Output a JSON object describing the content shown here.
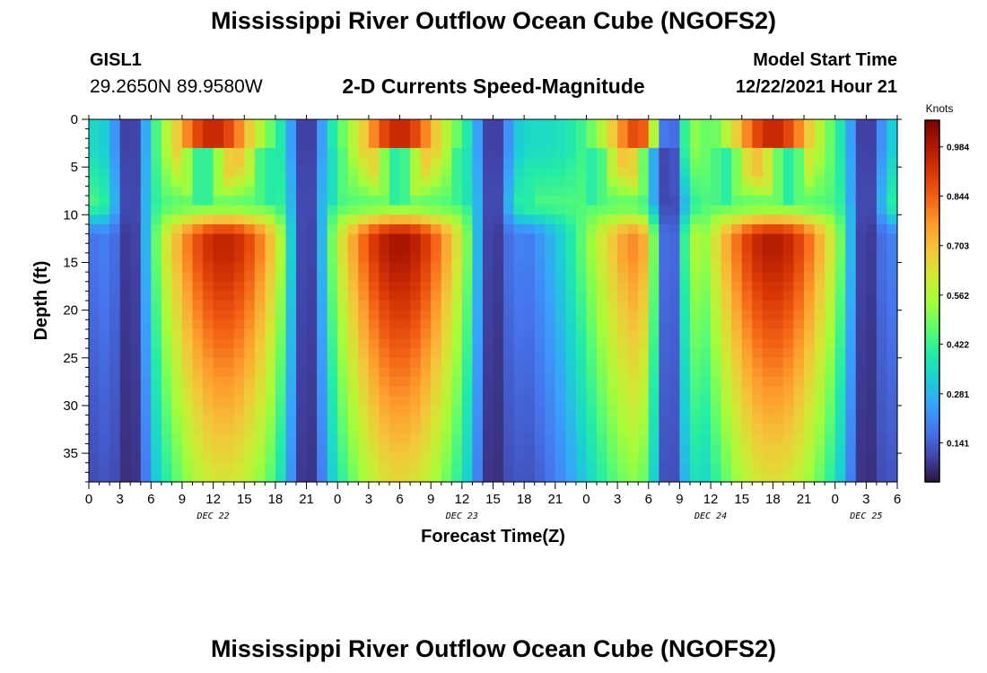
{
  "header": {
    "title": "Mississippi River Outflow Ocean Cube (NGOFS2)",
    "station_id": "GISL1",
    "station_coords": "29.2650N  89.9580W",
    "subtitle": "2-D Currents Speed-Magnitude",
    "start_label": "Model Start Time",
    "start_value": "12/22/2021 Hour 21"
  },
  "footer": {
    "title": "Mississippi River Outflow Ocean Cube (NGOFS2)"
  },
  "chart_data": {
    "type": "heatmap",
    "xlabel": "Forecast Time(Z)",
    "ylabel": "Depth (ft)",
    "x_hours": [
      0,
      78
    ],
    "x_tick_labels": [
      "0",
      "3",
      "6",
      "9",
      "12",
      "15",
      "18",
      "21",
      "0",
      "3",
      "6",
      "9",
      "12",
      "15",
      "18",
      "21",
      "0",
      "3",
      "6",
      "9",
      "12",
      "15",
      "18",
      "21",
      "0",
      "3",
      "6"
    ],
    "date_labels": [
      {
        "hour": 12,
        "text": "DEC 22"
      },
      {
        "hour": 36,
        "text": "DEC 23"
      },
      {
        "hour": 60,
        "text": "DEC 24"
      },
      {
        "hour": 75,
        "text": "DEC 25"
      }
    ],
    "y_tick_labels": [
      "0",
      "5",
      "10",
      "15",
      "20",
      "25",
      "30",
      "35"
    ],
    "ylim": [
      0,
      38
    ],
    "y_inverted": true,
    "colorbar": {
      "label": "Knots",
      "tick_labels": [
        "0.984",
        "0.844",
        "0.703",
        "0.562",
        "0.422",
        "0.281",
        "0.141"
      ],
      "range": [
        0.03,
        1.06
      ]
    },
    "approx_description_points": {
      "lower_layer_max_centers_hour": [
        13,
        30,
        54,
        66
      ],
      "lower_layer_peak_values": [
        0.96,
        1.0,
        0.82,
        0.98
      ],
      "minimum_centers_hour": [
        4,
        21,
        39,
        56,
        75
      ],
      "surface_peak_hours": [
        12,
        30,
        54,
        66
      ]
    }
  },
  "colors": {
    "scale": [
      "#30123b",
      "#4145ab",
      "#4675ed",
      "#39a2fc",
      "#1bcfd4",
      "#24eca6",
      "#61fc6c",
      "#a4fc3b",
      "#d1e834",
      "#f3c63a",
      "#fe9b2d",
      "#f36315",
      "#d93806",
      "#b11901",
      "#7a0402"
    ]
  }
}
